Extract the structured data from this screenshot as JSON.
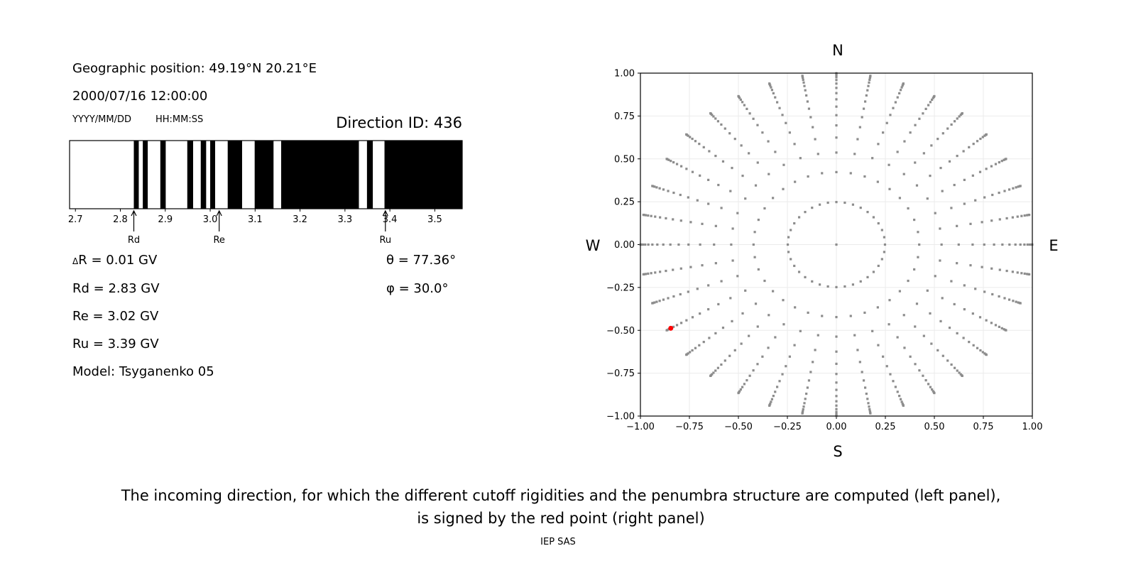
{
  "left_panel": {
    "geo_position": "Geographic position: 49.19°N 20.21°E",
    "datetime": "2000/07/16 12:00:00",
    "date_format": "YYYY/MM/DD",
    "time_format": "HH:MM:SS",
    "direction_id": "Direction ID: 436",
    "params": {
      "delta_r": "R = 0.01 GV",
      "delta_symbol": "Δ",
      "rd": "Rd = 2.83 GV",
      "re": "Re = 3.02 GV",
      "ru": "Ru = 3.39 GV",
      "model": "Model: Tsyganenko 05",
      "theta": "θ = 77.36°",
      "phi": "φ = 30.0°"
    }
  },
  "chart_data": [
    {
      "type": "bar",
      "description_kind": "penumbra",
      "xlim": [
        2.687,
        3.561
      ],
      "xticks": [
        "2.7",
        "2.8",
        "2.9",
        "3.0",
        "3.1",
        "3.2",
        "3.3",
        "3.4",
        "3.5"
      ],
      "black_intervals": [
        [
          2.83,
          2.841
        ],
        [
          2.85,
          2.861
        ],
        [
          2.889,
          2.901
        ],
        [
          2.949,
          2.962
        ],
        [
          2.979,
          2.991
        ],
        [
          3.0,
          3.011
        ],
        [
          3.039,
          3.071
        ],
        [
          3.099,
          3.141
        ],
        [
          3.158,
          3.331
        ],
        [
          3.349,
          3.362
        ],
        [
          3.388,
          3.561
        ]
      ],
      "markers": [
        {
          "label": "Rd",
          "value": 2.83
        },
        {
          "label": "Re",
          "value": 3.02
        },
        {
          "label": "Ru",
          "value": 3.39
        }
      ],
      "colors": {
        "allowed": "#ffffff",
        "forbidden": "#000000"
      }
    },
    {
      "type": "scatter",
      "xlim": [
        -1,
        1
      ],
      "ylim": [
        -1,
        1
      ],
      "xticks": [
        "−1.00",
        "−0.75",
        "−0.50",
        "−0.25",
        "0.00",
        "0.25",
        "0.50",
        "0.75",
        "1.00"
      ],
      "yticks": [
        "−1.00",
        "−0.75",
        "−0.50",
        "−0.25",
        "0.00",
        "0.25",
        "0.50",
        "0.75",
        "1.00"
      ],
      "grid": true,
      "compass": {
        "n": "N",
        "s": "S",
        "e": "E",
        "w": "W"
      },
      "directions": {
        "azimuth_step_deg": 10,
        "cos_zenith_denominator": 32,
        "rings": 16,
        "center_point": true
      },
      "highlight": {
        "theta_deg": 77.36,
        "phi_deg": 30.0,
        "color": "#ff0000"
      },
      "point_color": "#8c8c8c"
    }
  ],
  "caption": {
    "line1": "The incoming direction, for which the different cutoff rigidities and the penumbra structure are computed (left panel),",
    "line2": "is signed by the red point (right panel)",
    "credit": "IEP SAS"
  }
}
